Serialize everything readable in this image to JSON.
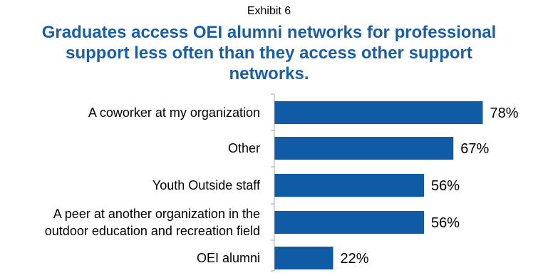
{
  "header": {
    "exhibit_label": "Exhibit 6",
    "title": "Graduates access OEI alumni networks for professional support less often than they access other support networks."
  },
  "colors": {
    "bar": "#0f5ba6",
    "title": "#1a5ea8",
    "axis": "#a6a6a6"
  },
  "chart_data": {
    "type": "bar",
    "orientation": "horizontal",
    "categories": [
      [
        "A coworker at my organization"
      ],
      [
        "Other"
      ],
      [
        "Youth Outside staff"
      ],
      [
        "A peer at another organization in the",
        "outdoor education and recreation field"
      ],
      [
        "OEI alumni"
      ]
    ],
    "values": [
      78,
      67,
      56,
      56,
      22
    ],
    "value_labels": [
      "78%",
      "67%",
      "56%",
      "56%",
      "22%"
    ],
    "title": "Graduates access OEI alumni networks for professional support less often than they access other support networks.",
    "xlabel": "",
    "ylabel": "",
    "xlim": [
      0,
      100
    ],
    "grid": false,
    "legend": "none"
  }
}
